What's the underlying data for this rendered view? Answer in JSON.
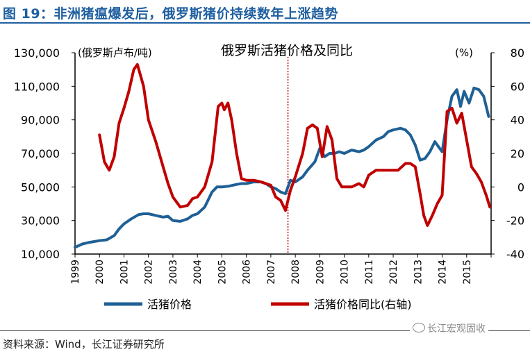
{
  "figure": {
    "title": "图 19：非洲猪瘟爆发后，俄罗斯猪价持续数年上涨趋势",
    "source": "资料来源：Wind，长江证券研究所",
    "watermark": "长江宏观固收"
  },
  "colors": {
    "price": "#1f6095",
    "yoy": "#c00000",
    "accent": "#1f5fa0"
  },
  "chart_data": {
    "type": "line",
    "title": "俄罗斯活猪价格及同比",
    "y_left_label": "(俄罗斯卢布/吨)",
    "y_right_label": "(%)",
    "x_ticks": [
      "1999",
      "2000",
      "2001",
      "2002",
      "2003",
      "2004",
      "2005",
      "2006",
      "2007",
      "2008",
      "2009",
      "2010",
      "2011",
      "2012",
      "2013",
      "2014",
      "2015"
    ],
    "x_range": [
      1999,
      2016
    ],
    "y_left_range": [
      10000,
      130000
    ],
    "y_left_ticks": [
      "130,000",
      "110,000",
      "90,000",
      "70,000",
      "50,000",
      "30,000",
      "10,000"
    ],
    "y_left_tick_values": [
      130000,
      110000,
      90000,
      70000,
      50000,
      30000,
      10000
    ],
    "y_right_range": [
      -40,
      80
    ],
    "y_right_ticks": [
      "80",
      "60",
      "40",
      "20",
      "0",
      "-20",
      "-40"
    ],
    "y_right_tick_values": [
      80,
      60,
      40,
      20,
      0,
      -20,
      -40
    ],
    "vline_x": 2007.7,
    "series": [
      {
        "name": "活猪价格",
        "axis": "left",
        "x": [
          1999.0,
          1999.3,
          1999.6,
          2000.0,
          2000.3,
          2000.6,
          2000.8,
          2001.0,
          2001.3,
          2001.6,
          2001.8,
          2002.0,
          2002.3,
          2002.6,
          2002.8,
          2003.0,
          2003.3,
          2003.6,
          2003.8,
          2004.0,
          2004.3,
          2004.6,
          2004.8,
          2005.0,
          2005.3,
          2005.6,
          2005.8,
          2006.0,
          2006.3,
          2006.6,
          2006.8,
          2007.0,
          2007.2,
          2007.4,
          2007.6,
          2007.8,
          2008.0,
          2008.3,
          2008.5,
          2008.8,
          2009.0,
          2009.2,
          2009.4,
          2009.6,
          2009.8,
          2010.0,
          2010.3,
          2010.6,
          2010.8,
          2011.0,
          2011.3,
          2011.6,
          2011.8,
          2012.0,
          2012.3,
          2012.5,
          2012.7,
          2012.9,
          2013.1,
          2013.3,
          2013.5,
          2013.7,
          2014.0,
          2014.2,
          2014.4,
          2014.6,
          2014.75,
          2014.9,
          2015.1,
          2015.3,
          2015.5,
          2015.7,
          2015.9
        ],
        "values": [
          14000,
          16000,
          17000,
          18000,
          18500,
          21000,
          25000,
          28000,
          31000,
          33500,
          34000,
          34000,
          33000,
          32000,
          32500,
          30000,
          29500,
          31000,
          33000,
          34000,
          38000,
          47000,
          50000,
          50000,
          50500,
          51500,
          52000,
          52000,
          53000,
          53000,
          52000,
          50000,
          49000,
          47000,
          46000,
          54000,
          53000,
          56000,
          60000,
          65000,
          73000,
          68000,
          70000,
          70000,
          71000,
          70000,
          72000,
          71000,
          72000,
          74000,
          78000,
          80000,
          83000,
          84000,
          85000,
          84000,
          81000,
          75000,
          66000,
          67000,
          71000,
          77000,
          71000,
          90000,
          104000,
          108000,
          98000,
          107000,
          100000,
          109000,
          108000,
          104000,
          92000
        ]
      },
      {
        "name": "活猪价格同比(右轴)",
        "axis": "right",
        "x": [
          2000.0,
          2000.2,
          2000.4,
          2000.6,
          2000.8,
          2001.0,
          2001.2,
          2001.4,
          2001.55,
          2001.8,
          2002.0,
          2002.3,
          2002.6,
          2002.8,
          2003.0,
          2003.3,
          2003.6,
          2003.8,
          2004.0,
          2004.3,
          2004.6,
          2004.85,
          2005.0,
          2005.1,
          2005.25,
          2005.4,
          2005.6,
          2005.8,
          2006.0,
          2006.3,
          2006.6,
          2006.8,
          2007.0,
          2007.2,
          2007.4,
          2007.6,
          2007.8,
          2008.0,
          2008.3,
          2008.5,
          2008.7,
          2008.9,
          2009.1,
          2009.3,
          2009.5,
          2009.7,
          2009.9,
          2010.1,
          2010.3,
          2010.6,
          2010.8,
          2011.0,
          2011.3,
          2011.6,
          2011.9,
          2012.2,
          2012.5,
          2012.7,
          2012.9,
          2013.1,
          2013.25,
          2013.4,
          2013.6,
          2013.8,
          2014.0,
          2014.2,
          2014.4,
          2014.6,
          2014.8,
          2015.0,
          2015.2,
          2015.4,
          2015.6,
          2015.8,
          2015.95
        ],
        "values": [
          31,
          15,
          10,
          18,
          38,
          47,
          57,
          70,
          73,
          60,
          40,
          27,
          12,
          2,
          -6,
          -12,
          -11,
          -7,
          -6,
          0,
          15,
          48,
          50,
          46,
          50,
          40,
          20,
          5,
          4,
          4,
          3,
          2,
          1,
          -6,
          -8,
          -14,
          -2,
          6,
          20,
          35,
          37,
          35,
          18,
          36,
          28,
          5,
          0,
          0,
          0,
          2,
          0,
          7,
          10,
          10,
          10,
          10,
          14,
          14,
          12,
          -4,
          -17,
          -23,
          -17,
          -10,
          -5,
          45,
          47,
          38,
          44,
          28,
          12,
          8,
          3,
          -5,
          -12
        ]
      }
    ],
    "legend": [
      "活猪价格",
      "活猪价格同比(右轴)"
    ],
    "legend_position": "bottom"
  }
}
